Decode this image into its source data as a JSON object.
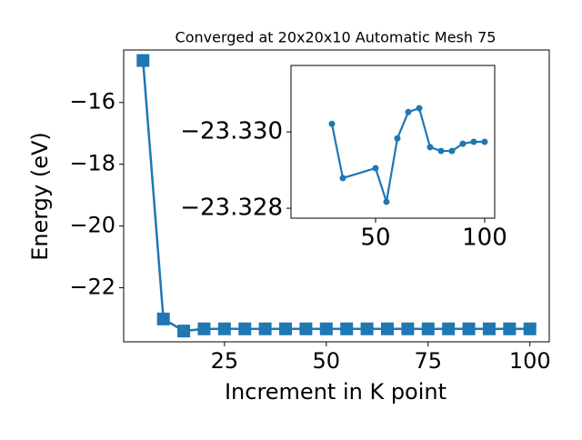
{
  "chart_data": [
    {
      "type": "line",
      "title": "Converged at 20x20x10 Automatic Mesh 75",
      "xlabel": "Increment in K point",
      "ylabel": "Energy (eV)",
      "x": [
        5,
        10,
        15,
        20,
        25,
        30,
        35,
        40,
        45,
        50,
        55,
        60,
        65,
        70,
        75,
        80,
        85,
        90,
        95,
        100
      ],
      "series": [
        {
          "name": "Energy",
          "color": "#1f77b4",
          "marker": "square",
          "values": [
            -14.64,
            -23.01,
            -23.4,
            -23.33,
            -23.33,
            -23.33,
            -23.33,
            -23.33,
            -23.33,
            -23.33,
            -23.33,
            -23.33,
            -23.33,
            -23.33,
            -23.33,
            -23.33,
            -23.33,
            -23.33,
            -23.33,
            -23.33
          ]
        }
      ],
      "xlim": [
        0.25,
        104.75
      ],
      "ylim": [
        -23.75,
        -14.3
      ],
      "xticks": [
        25,
        50,
        75,
        100
      ],
      "yticks": [
        {
          "value": -16,
          "label": "−16"
        },
        {
          "value": -18,
          "label": "−18"
        },
        {
          "value": -20,
          "label": "−20"
        },
        {
          "value": -22,
          "label": "−22"
        }
      ]
    },
    {
      "type": "line",
      "x": [
        30,
        35,
        50,
        55,
        60,
        65,
        70,
        75,
        80,
        85,
        90,
        95,
        100
      ],
      "series": [
        {
          "name": "Energy",
          "color": "#1f77b4",
          "marker": "circle",
          "values": [
            -23.33021,
            -23.32879,
            -23.32905,
            -23.32817,
            -23.32983,
            -23.33052,
            -23.33062,
            -23.3296,
            -23.3295,
            -23.3295,
            -23.32969,
            -23.32974,
            -23.32974
          ]
        }
      ],
      "xlim": [
        11.25,
        104.6
      ],
      "ylim": [
        -23.32774,
        -23.33174
      ],
      "xticks": [
        50,
        100
      ],
      "yticks": [
        {
          "value": -23.33,
          "label": "−23.330"
        },
        {
          "value": -23.328,
          "label": "−23.328"
        }
      ]
    }
  ]
}
